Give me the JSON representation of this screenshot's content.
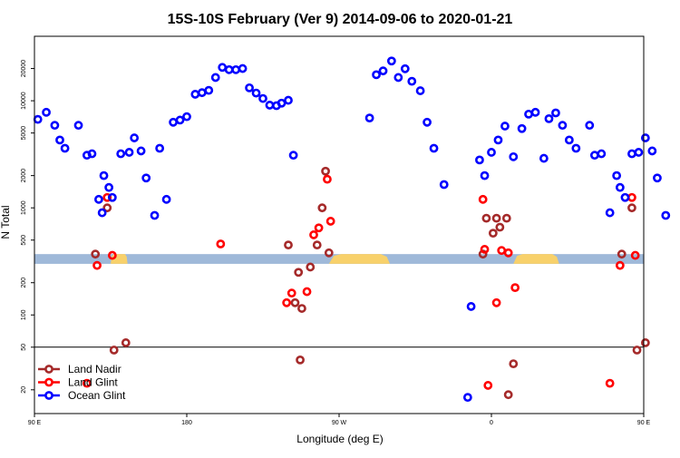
{
  "chart_data": {
    "type": "scatter",
    "title": "15S-10S February (Ver 9)   2014-09-06 to 2020-01-21",
    "xlabel": "Longitude (deg E)",
    "ylabel": "N Total",
    "y_scale": "log",
    "xlim": [
      90,
      450
    ],
    "ylim": [
      12,
      40000
    ],
    "x_ticks": [
      {
        "value": 90,
        "label": "90 E"
      },
      {
        "value": 180,
        "label": "180"
      },
      {
        "value": 270,
        "label": "90 W"
      },
      {
        "value": 360,
        "label": "0"
      },
      {
        "value": 450,
        "label": "90 E"
      },
      {
        "value": 540,
        "label": "180"
      }
    ],
    "y_ticks": [
      {
        "value": 20,
        "label": "20"
      },
      {
        "value": 50,
        "label": "50"
      },
      {
        "value": 100,
        "label": "100"
      },
      {
        "value": 200,
        "label": "200"
      },
      {
        "value": 500,
        "label": "500"
      },
      {
        "value": 1000,
        "label": "1000"
      },
      {
        "value": 2000,
        "label": "2000"
      },
      {
        "value": 5000,
        "label": "5000"
      },
      {
        "value": 10000,
        "label": "10000"
      },
      {
        "value": 20000,
        "label": "20000"
      }
    ],
    "reference_line": 50,
    "legend_position": "bottom-left",
    "band": {
      "y_low": 300,
      "y_high": 370,
      "color": "#9fb9d9"
    },
    "land_patches": [
      {
        "x0": 135,
        "x1": 145
      },
      {
        "x0": 264,
        "x1": 300
      },
      {
        "x0": 373,
        "x1": 400
      },
      {
        "x0": 485,
        "x1": 501
      }
    ],
    "series": [
      {
        "name": "Land Nadir",
        "color": "#a52a2a",
        "points": [
          [
            126,
            370
          ],
          [
            133,
            1000
          ],
          [
            137,
            47
          ],
          [
            144,
            55
          ],
          [
            240,
            450
          ],
          [
            244,
            130
          ],
          [
            246,
            250
          ],
          [
            247,
            38
          ],
          [
            248,
            115
          ],
          [
            253,
            280
          ],
          [
            257,
            450
          ],
          [
            260,
            1000
          ],
          [
            262,
            2200
          ],
          [
            264,
            380
          ],
          [
            355,
            370
          ],
          [
            357,
            800
          ],
          [
            361,
            580
          ],
          [
            363,
            800
          ],
          [
            365,
            660
          ],
          [
            369,
            800
          ],
          [
            370,
            18
          ],
          [
            373,
            35
          ],
          [
            437,
            370
          ],
          [
            443,
            1000
          ],
          [
            446,
            47
          ],
          [
            451,
            55
          ]
        ]
      },
      {
        "name": "Land Glint",
        "color": "#ff0000",
        "points": [
          [
            121,
            23
          ],
          [
            127,
            290
          ],
          [
            133,
            1250
          ],
          [
            136,
            360
          ],
          [
            200,
            460
          ],
          [
            239,
            130
          ],
          [
            242,
            160
          ],
          [
            251,
            165
          ],
          [
            255,
            560
          ],
          [
            258,
            650
          ],
          [
            263,
            1850
          ],
          [
            265,
            750
          ],
          [
            355,
            1200
          ],
          [
            356,
            410
          ],
          [
            358,
            22
          ],
          [
            363,
            130
          ],
          [
            366,
            400
          ],
          [
            370,
            380
          ],
          [
            374,
            180
          ],
          [
            430,
            23
          ],
          [
            436,
            290
          ],
          [
            443,
            1250
          ],
          [
            445,
            360
          ]
        ]
      },
      {
        "name": "Ocean Glint",
        "color": "#0000ff",
        "points": [
          [
            92,
            6700
          ],
          [
            97,
            7800
          ],
          [
            102,
            5900
          ],
          [
            105,
            4300
          ],
          [
            108,
            3600
          ],
          [
            116,
            5900
          ],
          [
            121,
            3100
          ],
          [
            124,
            3200
          ],
          [
            128,
            1200
          ],
          [
            130,
            900
          ],
          [
            131,
            2000
          ],
          [
            134,
            1550
          ],
          [
            136,
            1250
          ],
          [
            141,
            3200
          ],
          [
            146,
            3300
          ],
          [
            149,
            4500
          ],
          [
            153,
            3400
          ],
          [
            156,
            1900
          ],
          [
            161,
            850
          ],
          [
            164,
            3600
          ],
          [
            168,
            1200
          ],
          [
            172,
            6300
          ],
          [
            176,
            6600
          ],
          [
            180,
            7100
          ],
          [
            185,
            11500
          ],
          [
            189,
            11900
          ],
          [
            193,
            12500
          ],
          [
            197,
            16500
          ],
          [
            201,
            20500
          ],
          [
            205,
            19500
          ],
          [
            209,
            19500
          ],
          [
            213,
            20000
          ],
          [
            217,
            13200
          ],
          [
            221,
            11800
          ],
          [
            225,
            10500
          ],
          [
            229,
            9100
          ],
          [
            233,
            9000
          ],
          [
            236,
            9500
          ],
          [
            240,
            10100
          ],
          [
            243,
            3100
          ],
          [
            288,
            6900
          ],
          [
            292,
            17500
          ],
          [
            296,
            19000
          ],
          [
            301,
            23500
          ],
          [
            305,
            16500
          ],
          [
            309,
            19900
          ],
          [
            313,
            15200
          ],
          [
            318,
            12400
          ],
          [
            322,
            6300
          ],
          [
            326,
            3600
          ],
          [
            332,
            1650
          ],
          [
            346,
            17
          ],
          [
            348,
            120
          ],
          [
            353,
            2800
          ],
          [
            356,
            2000
          ],
          [
            360,
            3300
          ],
          [
            364,
            4300
          ],
          [
            368,
            5800
          ],
          [
            373,
            3000
          ],
          [
            378,
            5500
          ],
          [
            382,
            7500
          ],
          [
            386,
            7800
          ],
          [
            391,
            2900
          ],
          [
            394,
            6800
          ],
          [
            398,
            7700
          ],
          [
            402,
            5900
          ],
          [
            406,
            4300
          ],
          [
            410,
            3600
          ],
          [
            418,
            5900
          ],
          [
            421,
            3100
          ],
          [
            425,
            3200
          ],
          [
            430,
            900
          ],
          [
            434,
            2000
          ],
          [
            436,
            1550
          ],
          [
            439,
            1250
          ],
          [
            443,
            3200
          ],
          [
            447,
            3300
          ],
          [
            451,
            4500
          ],
          [
            455,
            3400
          ],
          [
            458,
            1900
          ],
          [
            463,
            850
          ]
        ]
      }
    ]
  }
}
